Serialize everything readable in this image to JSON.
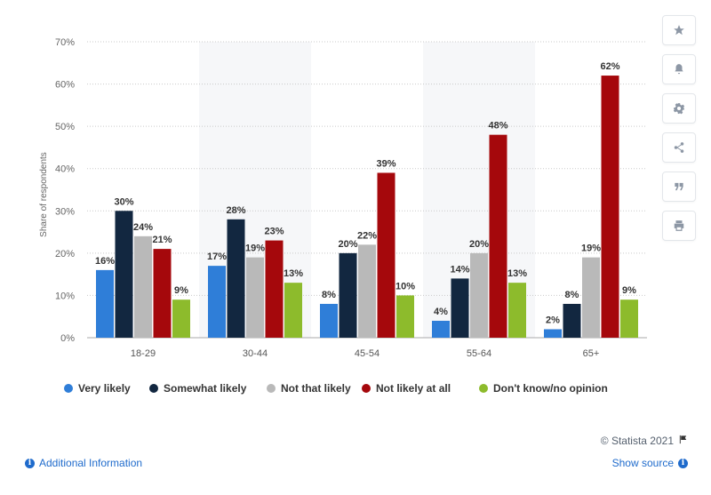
{
  "chart_data": {
    "type": "bar",
    "ylabel": "Share of respondents",
    "y_ticks": [
      "0%",
      "10%",
      "20%",
      "30%",
      "40%",
      "50%",
      "60%",
      "70%"
    ],
    "ylim": [
      0,
      70
    ],
    "categories": [
      "18-29",
      "30-44",
      "45-54",
      "55-64",
      "65+"
    ],
    "series": [
      {
        "name": "Very likely",
        "color": "#2f7ed8",
        "values": [
          16,
          17,
          8,
          4,
          2
        ],
        "labels": [
          "16%",
          "17%",
          "8%",
          "4%",
          "2%"
        ]
      },
      {
        "name": "Somewhat likely",
        "color": "#122740",
        "values": [
          30,
          28,
          20,
          14,
          8
        ],
        "labels": [
          "30%",
          "28%",
          "20%",
          "14%",
          "8%"
        ]
      },
      {
        "name": "Not that likely",
        "color": "#b9b9b9",
        "values": [
          24,
          19,
          22,
          20,
          19
        ],
        "labels": [
          "24%",
          "19%",
          "22%",
          "20%",
          "19%"
        ]
      },
      {
        "name": "Not likely at all",
        "color": "#a5080c",
        "values": [
          21,
          23,
          39,
          48,
          62
        ],
        "labels": [
          "21%",
          "23%",
          "39%",
          "48%",
          "62%"
        ]
      },
      {
        "name": "Don't know/no opinion",
        "color": "#8dbb2c",
        "values": [
          9,
          13,
          10,
          13,
          9
        ],
        "labels": [
          "9%",
          "13%",
          "10%",
          "13%",
          "9%"
        ]
      }
    ],
    "grid": true,
    "legend_position": "bottom"
  },
  "sidebar": {
    "icons": [
      "star-icon",
      "bell-icon",
      "gear-icon",
      "share-icon",
      "quote-icon",
      "print-icon"
    ]
  },
  "footer": {
    "credit": "© Statista 2021",
    "additional_info": "Additional Information",
    "show_source": "Show source"
  }
}
